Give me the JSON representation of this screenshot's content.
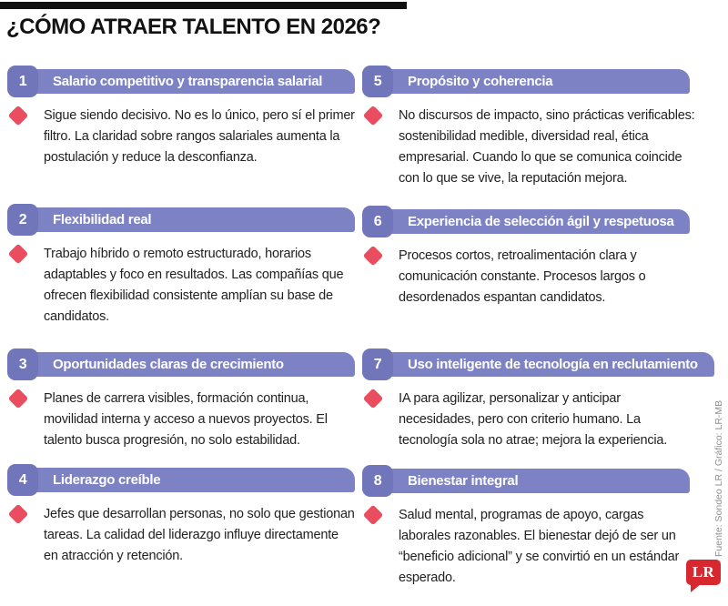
{
  "header": {
    "title": "¿CÓMO ATRAER TALENTO EN 2026?"
  },
  "colors": {
    "bar_purple": "#7d82c4",
    "chip_purple": "#7176bb",
    "diamond_red": "#e94d5f",
    "logo_red": "#d7282f",
    "rule_black": "#101010",
    "credit_gray": "#8f8f8f"
  },
  "items": [
    {
      "number": "1",
      "title": "Salario competitivo y transparencia salarial",
      "body": "Sigue siendo decisivo. No es lo único, pero sí el primer filtro. La claridad sobre rangos salariales aumenta la postulación y reduce la desconfianza."
    },
    {
      "number": "2",
      "title": "Flexibilidad real",
      "body": "Trabajo híbrido o remoto estructurado, horarios adaptables y foco en resultados. Las compañías que ofrecen flexibilidad consistente amplían su base de candidatos."
    },
    {
      "number": "3",
      "title": "Oportunidades claras de crecimiento",
      "body": "Planes de carrera visibles, formación continua, movilidad interna y acceso a nuevos proyectos. El talento busca progresión, no solo estabilidad."
    },
    {
      "number": "4",
      "title": "Liderazgo creíble",
      "body": "Jefes que desarrollan personas, no solo que gestionan tareas. La calidad del liderazgo influye directamente en atracción y retención."
    },
    {
      "number": "5",
      "title": "Propósito y coherencia",
      "body": "No discursos de impacto, sino prácticas verificables: sostenibilidad medible, diversidad real, ética empresarial. Cuando lo que se comunica coincide con lo que se vive, la reputación mejora."
    },
    {
      "number": "6",
      "title": "Experiencia de selección ágil y respetuosa",
      "body": "Procesos cortos, retroalimentación clara y comunicación constante. Procesos largos o desordenados espantan candidatos."
    },
    {
      "number": "7",
      "title": "Uso inteligente de tecnología en reclutamiento",
      "body": "IA para agilizar, personalizar y anticipar necesidades, pero con criterio humano. La tecnología sola no atrae; mejora la experiencia."
    },
    {
      "number": "8",
      "title": "Bienestar integral",
      "body": "Salud mental, programas de apoyo, cargas laborales razonables. El bienestar dejó de ser un “beneficio adicional” y se convirtió en un estándar esperado."
    }
  ],
  "footer": {
    "credit": "Fuente: Sondeo LR / Gráfico: LR-MB",
    "logo_text": "LR"
  }
}
